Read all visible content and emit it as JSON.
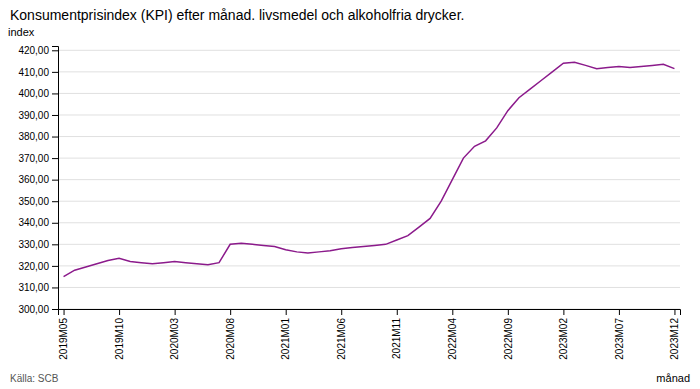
{
  "chart_data": {
    "type": "line",
    "title": "Konsumentprisindex (KPI) efter månad. livsmedel och alkoholfria drycker.",
    "ylabel": "index",
    "xlabel": "månad",
    "annotations": [
      "Källa: SCB"
    ],
    "color": "#8B1A8B",
    "grid": true,
    "ylim": [
      300.0,
      422.0
    ],
    "yticks": [
      {
        "value": 300.0,
        "label": "300,00"
      },
      {
        "value": 310.0,
        "label": "310,00"
      },
      {
        "value": 320.0,
        "label": "320,00"
      },
      {
        "value": 330.0,
        "label": "330,00"
      },
      {
        "value": 340.0,
        "label": "340,00"
      },
      {
        "value": 350.0,
        "label": "350,00"
      },
      {
        "value": 360.0,
        "label": "360,00"
      },
      {
        "value": 370.0,
        "label": "370,00"
      },
      {
        "value": 380.0,
        "label": "380,00"
      },
      {
        "value": 390.0,
        "label": "390,00"
      },
      {
        "value": 400.0,
        "label": "400,00"
      },
      {
        "value": 410.0,
        "label": "410,00"
      },
      {
        "value": 420.0,
        "label": "420,00"
      }
    ],
    "categories": [
      "2019M05",
      null,
      null,
      null,
      null,
      "2019M10",
      null,
      null,
      null,
      null,
      "2020M03",
      null,
      null,
      null,
      null,
      "2020M08",
      null,
      null,
      null,
      null,
      "2021M01",
      null,
      null,
      null,
      null,
      "2021M06",
      null,
      null,
      null,
      null,
      "2021M11",
      null,
      null,
      null,
      null,
      "2022M04",
      null,
      null,
      null,
      null,
      "2022M09",
      null,
      null,
      null,
      null,
      "2023M02",
      null,
      null,
      null,
      null,
      "2023M07",
      null,
      null,
      null,
      null,
      "2023M12"
    ],
    "values": [
      315.0,
      318.0,
      319.5,
      321.0,
      322.5,
      323.5,
      322.0,
      321.5,
      321.0,
      321.5,
      322.0,
      321.5,
      321.0,
      320.5,
      321.5,
      330.0,
      330.5,
      330.0,
      329.5,
      329.0,
      327.5,
      326.5,
      326.0,
      326.5,
      327.0,
      328.0,
      328.5,
      329.0,
      329.5,
      330.0,
      332.0,
      334.0,
      338.0,
      342.0,
      350.0,
      360.0,
      370.0,
      375.5,
      378.0,
      384.0,
      392.0,
      398.0,
      402.0,
      406.0,
      410.0,
      414.0,
      414.5,
      413.0,
      411.5,
      412.0,
      412.5,
      412.0,
      412.5,
      413.0,
      413.5,
      411.5
    ]
  }
}
